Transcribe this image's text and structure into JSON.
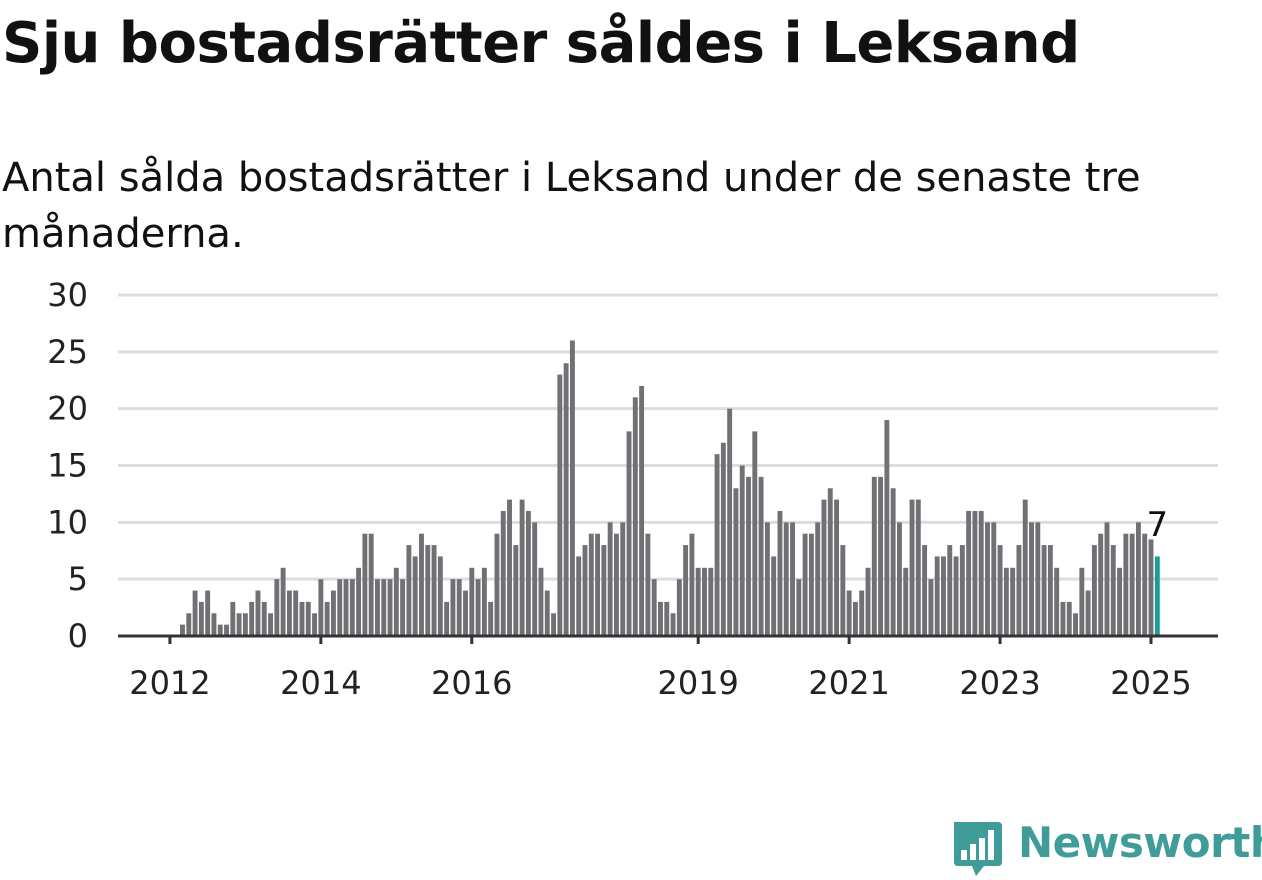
{
  "title": "Sju bostadsrätter såldes i Leksand",
  "subtitle": "Antal sålda bostadsrätter i Leksand under de senaste tre månaderna.",
  "brand": {
    "name": "Newsworthy",
    "color": "#3f9c98"
  },
  "colors": {
    "bar": "#727075",
    "highlight": "#1a9b94",
    "grid": "#dddddd",
    "axis": "#333333",
    "text": "#222222"
  },
  "chart_data": {
    "type": "bar",
    "x_start": "2012-01",
    "frequency": "monthly",
    "values": [
      0,
      0,
      1,
      2,
      4,
      3,
      4,
      2,
      1,
      1,
      3,
      2,
      2,
      3,
      4,
      3,
      2,
      5,
      6,
      4,
      4,
      3,
      3,
      2,
      5,
      3,
      4,
      5,
      5,
      5,
      6,
      9,
      9,
      5,
      5,
      5,
      6,
      5,
      8,
      7,
      9,
      8,
      8,
      7,
      3,
      5,
      5,
      4,
      6,
      5,
      6,
      3,
      9,
      11,
      12,
      8,
      12,
      11,
      10,
      6,
      4,
      2,
      23,
      24,
      26,
      7,
      8,
      9,
      9,
      8,
      10,
      9,
      10,
      18,
      21,
      22,
      9,
      5,
      3,
      3,
      2,
      5,
      8,
      9,
      6,
      6,
      6,
      16,
      17,
      20,
      13,
      15,
      14,
      18,
      14,
      10,
      7,
      11,
      10,
      10,
      5,
      9,
      9,
      10,
      12,
      13,
      12,
      8,
      4,
      3,
      4,
      6,
      14,
      14,
      19,
      13,
      10,
      6,
      12,
      12,
      8,
      5,
      7,
      7,
      8,
      7,
      8,
      11,
      11,
      11,
      10,
      10,
      8,
      6,
      6,
      8,
      12,
      10,
      10,
      8,
      8,
      6,
      3,
      3,
      2,
      6,
      4,
      8,
      9,
      10,
      8,
      6,
      9,
      9,
      10,
      9,
      8.5,
      7
    ],
    "highlight_last": true,
    "last_label": "7",
    "y_ticks": [
      0,
      5,
      10,
      15,
      20,
      25,
      30
    ],
    "ylim": [
      0,
      30
    ],
    "x_ticks": [
      "2012",
      "2014",
      "2016",
      "2019",
      "2021",
      "2023",
      "2025"
    ],
    "grid": true
  }
}
